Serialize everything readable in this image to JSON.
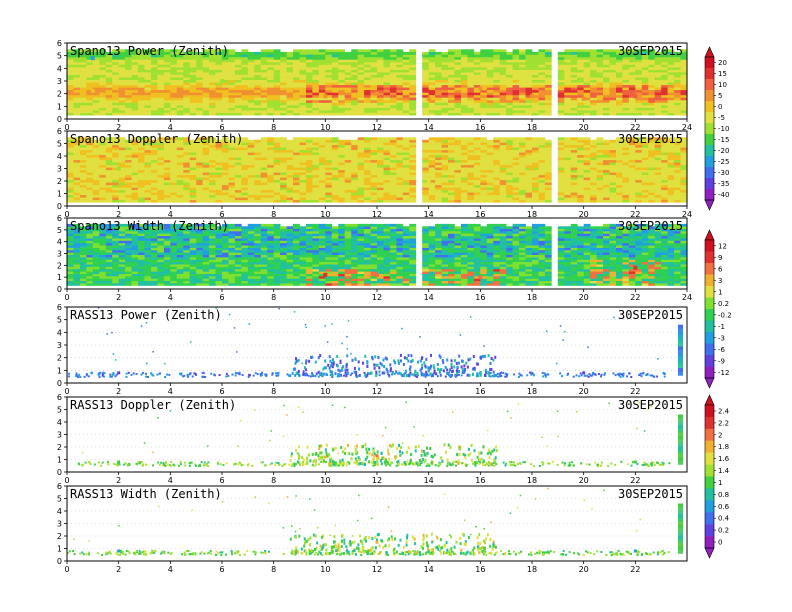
{
  "chart_data": [
    {
      "type": "heatmap",
      "title": "Spano13 Power (Zenith)",
      "date": "30SEP2015",
      "xlim": [
        0,
        24
      ],
      "ylim": [
        0,
        6
      ],
      "xticks": [
        "0",
        "2",
        "4",
        "6",
        "8",
        "10",
        "12",
        "14",
        "16",
        "18",
        "20",
        "22",
        "24"
      ],
      "yticks": [
        "0",
        "1",
        "2",
        "3",
        "4",
        "5",
        "6"
      ],
      "cells": [
        {
          "x": 1,
          "y": 4.8,
          "v": -25
        },
        {
          "x": 1,
          "y": 2.2,
          "v": 0
        },
        {
          "x": 6,
          "y": 3.0,
          "v": -12
        },
        {
          "x": 10,
          "y": 1.8,
          "v": 3
        },
        {
          "x": 12,
          "y": 2.0,
          "v": 5
        },
        {
          "x": 14,
          "y": 1.6,
          "v": 3
        },
        {
          "x": 16,
          "y": 2.4,
          "v": 5
        },
        {
          "x": 18,
          "y": 1.8,
          "v": 5
        },
        {
          "x": 20,
          "y": 1.6,
          "v": 3
        },
        {
          "x": 22,
          "y": 1.8,
          "v": 8
        }
      ]
    },
    {
      "type": "heatmap",
      "title": "Spano13 Doppler (Zenith)",
      "date": "30SEP2015",
      "xlim": [
        0,
        24
      ],
      "ylim": [
        0,
        6
      ],
      "xticks": [
        "0",
        "2",
        "4",
        "6",
        "8",
        "10",
        "12",
        "14",
        "16",
        "18",
        "20",
        "22",
        "24"
      ],
      "yticks": [
        "0",
        "1",
        "2",
        "3",
        "4",
        "5",
        "6"
      ],
      "cells": [
        {
          "x": 2,
          "y": 3.0,
          "v": -10
        },
        {
          "x": 10,
          "y": 3.5,
          "v": 0
        },
        {
          "x": 14,
          "y": 2.0,
          "v": -5
        },
        {
          "x": 18,
          "y": 3.0,
          "v": 0
        }
      ]
    },
    {
      "type": "heatmap",
      "title": "Spano13 Width (Zenith)",
      "date": "30SEP2015",
      "xlim": [
        0,
        24
      ],
      "ylim": [
        0,
        6
      ],
      "xticks": [
        "0",
        "2",
        "4",
        "6",
        "8",
        "10",
        "12",
        "14",
        "16",
        "18",
        "20",
        "22",
        "24"
      ],
      "yticks": [
        "0",
        "1",
        "2",
        "3",
        "4",
        "5",
        "6"
      ],
      "cells": [
        {
          "x": 3,
          "y": 5.0,
          "v": -3
        },
        {
          "x": 10,
          "y": 1.2,
          "v": 9
        },
        {
          "x": 12,
          "y": 1.2,
          "v": 6
        },
        {
          "x": 16,
          "y": 1.0,
          "v": 6
        },
        {
          "x": 22,
          "y": 1.8,
          "v": 9
        }
      ]
    },
    {
      "type": "scatter",
      "title": "RASS13 Power (Zenith)",
      "date": "30SEP2015",
      "xlim": [
        0,
        24
      ],
      "ylim": [
        0,
        6
      ],
      "xticks": [
        "0",
        "2",
        "4",
        "6",
        "8",
        "10",
        "12",
        "14",
        "16",
        "18",
        "20",
        "22"
      ],
      "yticks": [
        "0",
        "1",
        "2",
        "3",
        "4",
        "5",
        "6"
      ],
      "points": [
        {
          "x": 2,
          "y": 0.8,
          "v": -9
        },
        {
          "x": 10,
          "y": 1.2,
          "v": -6
        },
        {
          "x": 12,
          "y": 1.4,
          "v": -3
        },
        {
          "x": 14,
          "y": 1.2,
          "v": -6
        },
        {
          "x": 20,
          "y": 0.8,
          "v": -9
        }
      ]
    },
    {
      "type": "scatter",
      "title": "RASS13 Doppler (Zenith)",
      "date": "30SEP2015",
      "xlim": [
        0,
        24
      ],
      "ylim": [
        0,
        6
      ],
      "xticks": [
        "0",
        "2",
        "4",
        "6",
        "8",
        "10",
        "12",
        "14",
        "16",
        "18",
        "20",
        "22"
      ],
      "yticks": [
        "0",
        "1",
        "2",
        "3",
        "4",
        "5",
        "6"
      ],
      "points": [
        {
          "x": 2,
          "y": 0.8,
          "v": 1
        },
        {
          "x": 10,
          "y": 1.2,
          "v": 1.6
        },
        {
          "x": 12,
          "y": 1.3,
          "v": 1.8
        },
        {
          "x": 16,
          "y": 1.0,
          "v": 1.4
        },
        {
          "x": 22,
          "y": 0.8,
          "v": 1
        }
      ]
    },
    {
      "type": "scatter",
      "title": "RASS13 Width (Zenith)",
      "date": "30SEP2015",
      "xlim": [
        0,
        24
      ],
      "ylim": [
        0,
        6
      ],
      "xticks": [
        "0",
        "2",
        "4",
        "6",
        "8",
        "10",
        "12",
        "14",
        "16",
        "18",
        "20",
        "22"
      ],
      "yticks": [
        "0",
        "1",
        "2",
        "3",
        "4",
        "5",
        "6"
      ],
      "points": [
        {
          "x": 2,
          "y": 0.8,
          "v": 0.6
        },
        {
          "x": 10,
          "y": 1.3,
          "v": 1.2
        },
        {
          "x": 12,
          "y": 1.5,
          "v": 1.6
        },
        {
          "x": 16,
          "y": 1.0,
          "v": 1.2
        },
        {
          "x": 22,
          "y": 0.8,
          "v": 0.6
        }
      ]
    }
  ],
  "colorbars": [
    {
      "ticks": [
        "20",
        "15",
        "10",
        "5",
        "0",
        "-5",
        "-10",
        "-15",
        "-20",
        "-25",
        "-30",
        "-35",
        "-40"
      ],
      "colors": [
        "#d01020",
        "#e03030",
        "#f06040",
        "#f09030",
        "#f0c020",
        "#e0e040",
        "#a0e030",
        "#40d040",
        "#20c0a0",
        "#20a0e0",
        "#4070f0",
        "#6040e0",
        "#9020c0"
      ]
    },
    {
      "ticks": [
        "12",
        "9",
        "6",
        "3",
        "1",
        "0.2",
        "-0.2",
        "-1",
        "-3",
        "-6",
        "-9",
        "-12"
      ],
      "colors": [
        "#d01020",
        "#e03030",
        "#f07040",
        "#f0b030",
        "#e0e040",
        "#80e030",
        "#30d050",
        "#20c0a0",
        "#20a0e0",
        "#4070f0",
        "#6040e0",
        "#9020c0"
      ]
    },
    {
      "ticks": [
        "2.4",
        "2.2",
        "2",
        "1.8",
        "1.6",
        "1.4",
        "1",
        "0.8",
        "0.6",
        "0.4",
        "0.2",
        "0"
      ],
      "colors": [
        "#d01020",
        "#e03030",
        "#f07040",
        "#f0b030",
        "#e0e040",
        "#a0e030",
        "#40d040",
        "#20c0a0",
        "#20a0e0",
        "#4070f0",
        "#6040e0",
        "#9020c0"
      ]
    }
  ],
  "panel_titles": [
    "Spano13 Power (Zenith)",
    "Spano13 Doppler (Zenith)",
    "Spano13 Width (Zenith)",
    "RASS13 Power (Zenith)",
    "RASS13 Doppler (Zenith)",
    "RASS13 Width (Zenith)"
  ],
  "date_label": "30SEP2015"
}
